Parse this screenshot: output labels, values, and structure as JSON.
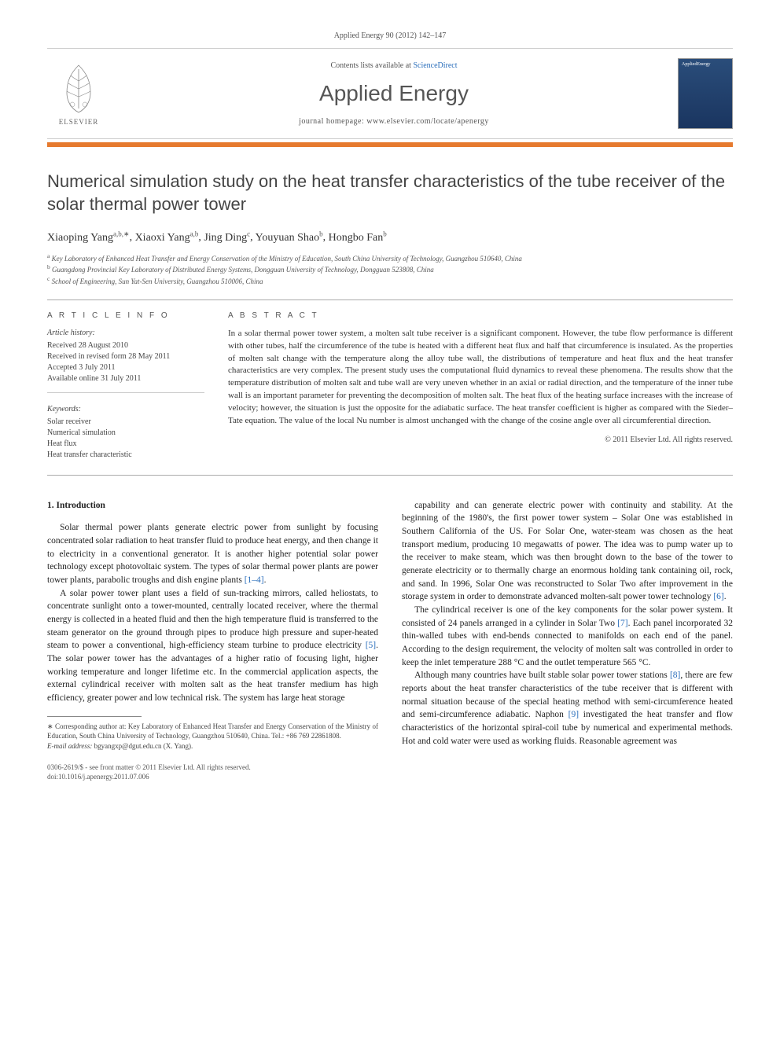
{
  "topline": "Applied Energy 90 (2012) 142–147",
  "header": {
    "contents_prefix": "Contents lists available at ",
    "contents_link": "ScienceDirect",
    "journal": "Applied Energy",
    "homepage_prefix": "journal homepage: ",
    "homepage_url": "www.elsevier.com/locate/apenergy",
    "publisher": "ELSEVIER",
    "cover_label": "AppliedEnergy"
  },
  "title": "Numerical simulation study on the heat transfer characteristics of the tube receiver of the solar thermal power tower",
  "authors": [
    {
      "name": "Xiaoping Yang",
      "sup": "a,b,∗"
    },
    {
      "name": "Xiaoxi Yang",
      "sup": "a,b"
    },
    {
      "name": "Jing Ding",
      "sup": "c"
    },
    {
      "name": "Youyuan Shao",
      "sup": "b"
    },
    {
      "name": "Hongbo Fan",
      "sup": "b"
    }
  ],
  "affiliations": [
    {
      "sup": "a",
      "text": "Key Laboratory of Enhanced Heat Transfer and Energy Conservation of the Ministry of Education, South China University of Technology, Guangzhou 510640, China"
    },
    {
      "sup": "b",
      "text": "Guangdong Provincial Key Laboratory of Distributed Energy Systems, Dongguan University of Technology, Dongguan 523808, China"
    },
    {
      "sup": "c",
      "text": "School of Engineering, Sun Yat-Sen University, Guangzhou 510006, China"
    }
  ],
  "article_info": {
    "heading": "A R T I C L E   I N F O",
    "history_label": "Article history:",
    "history": [
      "Received 28 August 2010",
      "Received in revised form 28 May 2011",
      "Accepted 3 July 2011",
      "Available online 31 July 2011"
    ],
    "keywords_label": "Keywords:",
    "keywords": [
      "Solar receiver",
      "Numerical simulation",
      "Heat flux",
      "Heat transfer characteristic"
    ]
  },
  "abstract": {
    "heading": "A B S T R A C T",
    "text": "In a solar thermal power tower system, a molten salt tube receiver is a significant component. However, the tube flow performance is different with other tubes, half the circumference of the tube is heated with a different heat flux and half that circumference is insulated. As the properties of molten salt change with the temperature along the alloy tube wall, the distributions of temperature and heat flux and the heat transfer characteristics are very complex. The present study uses the computational fluid dynamics to reveal these phenomena. The results show that the temperature distribution of molten salt and tube wall are very uneven whether in an axial or radial direction, and the temperature of the inner tube wall is an important parameter for preventing the decomposition of molten salt. The heat flux of the heating surface increases with the increase of velocity; however, the situation is just the opposite for the adiabatic surface. The heat transfer coefficient is higher as compared with the Sieder–Tate equation. The value of the local Nu number is almost unchanged with the change of the cosine angle over all circumferential direction.",
    "copyright": "© 2011 Elsevier Ltd. All rights reserved."
  },
  "body": {
    "section_heading": "1. Introduction",
    "col1": [
      "Solar thermal power plants generate electric power from sunlight by focusing concentrated solar radiation to heat transfer fluid to produce heat energy, and then change it to electricity in a conventional generator. It is another higher potential solar power technology except photovoltaic system. The types of solar thermal power plants are power tower plants, parabolic troughs and dish engine plants [1–4].",
      "A solar power tower plant uses a field of sun-tracking mirrors, called heliostats, to concentrate sunlight onto a tower-mounted, centrally located receiver, where the thermal energy is collected in a heated fluid and then the high temperature fluid is transferred to the steam generator on the ground through pipes to produce high pressure and super-heated steam to power a conventional, high-efficiency steam turbine to produce electricity [5]. The solar power tower has the advantages of a higher ratio of focusing light, higher working temperature and longer lifetime etc. In the commercial application aspects, the external cylindrical receiver with molten salt as the heat transfer medium has high efficiency, greater power and low technical risk. The system has large heat storage"
    ],
    "col2": [
      "capability and can generate electric power with continuity and stability. At the beginning of the 1980's, the first power tower system – Solar One was established in Southern California of the US. For Solar One, water-steam was chosen as the heat transport medium, producing 10 megawatts of power. The idea was to pump water up to the receiver to make steam, which was then brought down to the base of the tower to generate electricity or to thermally charge an enormous holding tank containing oil, rock, and sand. In 1996, Solar One was reconstructed to Solar Two after improvement in the storage system in order to demonstrate advanced molten-salt power tower technology [6].",
      "The cylindrical receiver is one of the key components for the solar power system. It consisted of 24 panels arranged in a cylinder in Solar Two [7]. Each panel incorporated 32 thin-walled tubes with end-bends connected to manifolds on each end of the panel. According to the design requirement, the velocity of molten salt was controlled in order to keep the inlet temperature 288 °C and the outlet temperature 565 °C.",
      "Although many countries have built stable solar power tower stations [8], there are few reports about the heat transfer characteristics of the tube receiver that is different with normal situation because of the special heating method with semi-circumference heated and semi-circumference adiabatic. Naphon [9] investigated the heat transfer and flow characteristics of the horizontal spiral-coil tube by numerical and experimental methods. Hot and cold water were used as working fluids. Reasonable agreement was"
    ]
  },
  "footnote": {
    "corresp_marker": "∗",
    "corresp_text": "Corresponding author at: Key Laboratory of Enhanced Heat Transfer and Energy Conservation of the Ministry of Education, South China University of Technology, Guangzhou 510640, China. Tel.: +86 769 22861808.",
    "email_label": "E-mail address:",
    "email": "bgyangxp@dgut.edu.cn",
    "email_who": "(X. Yang)."
  },
  "bottom": {
    "line1": "0306-2619/$ - see front matter © 2011 Elsevier Ltd. All rights reserved.",
    "line2": "doi:10.1016/j.apenergy.2011.07.006"
  }
}
